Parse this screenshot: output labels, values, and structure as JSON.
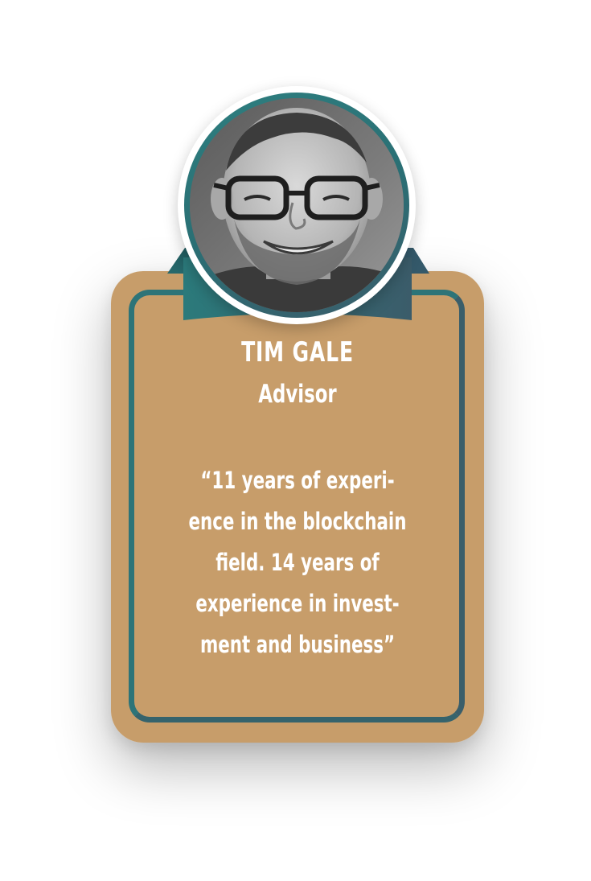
{
  "profile": {
    "name": "TIM GALE",
    "role": "Advisor",
    "quote_lines": [
      "“11 years of experi-",
      "ence in the blockchain",
      "field. 14 years of",
      "experience in invest-",
      "ment and business”"
    ],
    "photo": "portrait-photo"
  },
  "colors": {
    "card": "#c79d6a",
    "border": "#2d7478",
    "ring": "#2e7f80",
    "text": "#ffffff"
  }
}
